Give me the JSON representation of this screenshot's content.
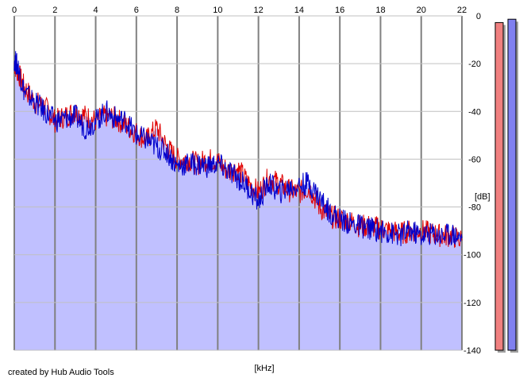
{
  "footer_text": "created by Hub Audio Tools",
  "chart_data": {
    "type": "area",
    "xlabel": "[kHz]",
    "ylabel": "[dB]",
    "xlim": [
      0,
      22
    ],
    "ylim": [
      -140,
      0
    ],
    "x_ticks": [
      "0",
      "2",
      "4",
      "6",
      "8",
      "10",
      "12",
      "14",
      "16",
      "18",
      "20",
      "22"
    ],
    "y_ticks": [
      "0",
      "-20",
      "-40",
      "-60",
      "-80",
      "-100",
      "-120",
      "-140"
    ],
    "grid": true,
    "colors": {
      "left_channel": "#e00000",
      "right_channel": "#0000cc",
      "fill": "#c0c0ff",
      "grid": "#c0c0c0",
      "meter_left": "#f08080",
      "meter_right": "#8080f0"
    },
    "series": [
      {
        "color": "#e00000",
        "x": [
          0,
          0.2,
          0.5,
          1,
          1.5,
          2,
          2.5,
          3,
          3.5,
          4,
          4.5,
          5,
          5.5,
          6,
          6.5,
          7,
          7.5,
          8,
          8.5,
          9,
          9.5,
          10,
          10.5,
          11,
          11.5,
          12,
          12.5,
          13,
          13.5,
          14,
          14.5,
          15,
          15.5,
          16,
          16.5,
          17,
          17.5,
          18,
          18.5,
          19,
          19.5,
          20,
          20.5,
          21,
          21.5,
          22
        ],
        "values": [
          -20,
          -24,
          -30,
          -36,
          -38,
          -44,
          -42,
          -40,
          -42,
          -44,
          -42,
          -43,
          -46,
          -49,
          -52,
          -47,
          -55,
          -60,
          -60,
          -62,
          -60,
          -61,
          -65,
          -64,
          -70,
          -74,
          -68,
          -70,
          -73,
          -74,
          -72,
          -80,
          -84,
          -85,
          -86,
          -88,
          -88,
          -89,
          -90,
          -91,
          -90,
          -90,
          -91,
          -92,
          -92,
          -94
        ]
      },
      {
        "color": "#0000cc",
        "x": [
          0,
          0.2,
          0.5,
          1,
          1.5,
          2,
          2.5,
          3,
          3.5,
          4,
          4.5,
          5,
          5.5,
          6,
          6.5,
          7,
          7.5,
          8,
          8.5,
          9,
          9.5,
          10,
          10.5,
          11,
          11.5,
          12,
          12.5,
          13,
          13.5,
          14,
          14.5,
          15,
          15.5,
          16,
          16.5,
          17,
          17.5,
          18,
          18.5,
          19,
          19.5,
          20,
          20.5,
          21,
          21.5,
          22
        ],
        "values": [
          -18,
          -22,
          -32,
          -36,
          -40,
          -44,
          -43,
          -42,
          -47,
          -44,
          -40,
          -43,
          -44,
          -50,
          -52,
          -55,
          -57,
          -63,
          -62,
          -62,
          -63,
          -62,
          -65,
          -68,
          -72,
          -78,
          -70,
          -74,
          -72,
          -71,
          -70,
          -76,
          -82,
          -85,
          -87,
          -88,
          -89,
          -90,
          -91,
          -92,
          -90,
          -92,
          -91,
          -92,
          -91,
          -93
        ]
      }
    ],
    "level_meters": [
      {
        "channel": "left",
        "level": 0.98
      },
      {
        "channel": "right",
        "level": 0.99
      }
    ]
  }
}
